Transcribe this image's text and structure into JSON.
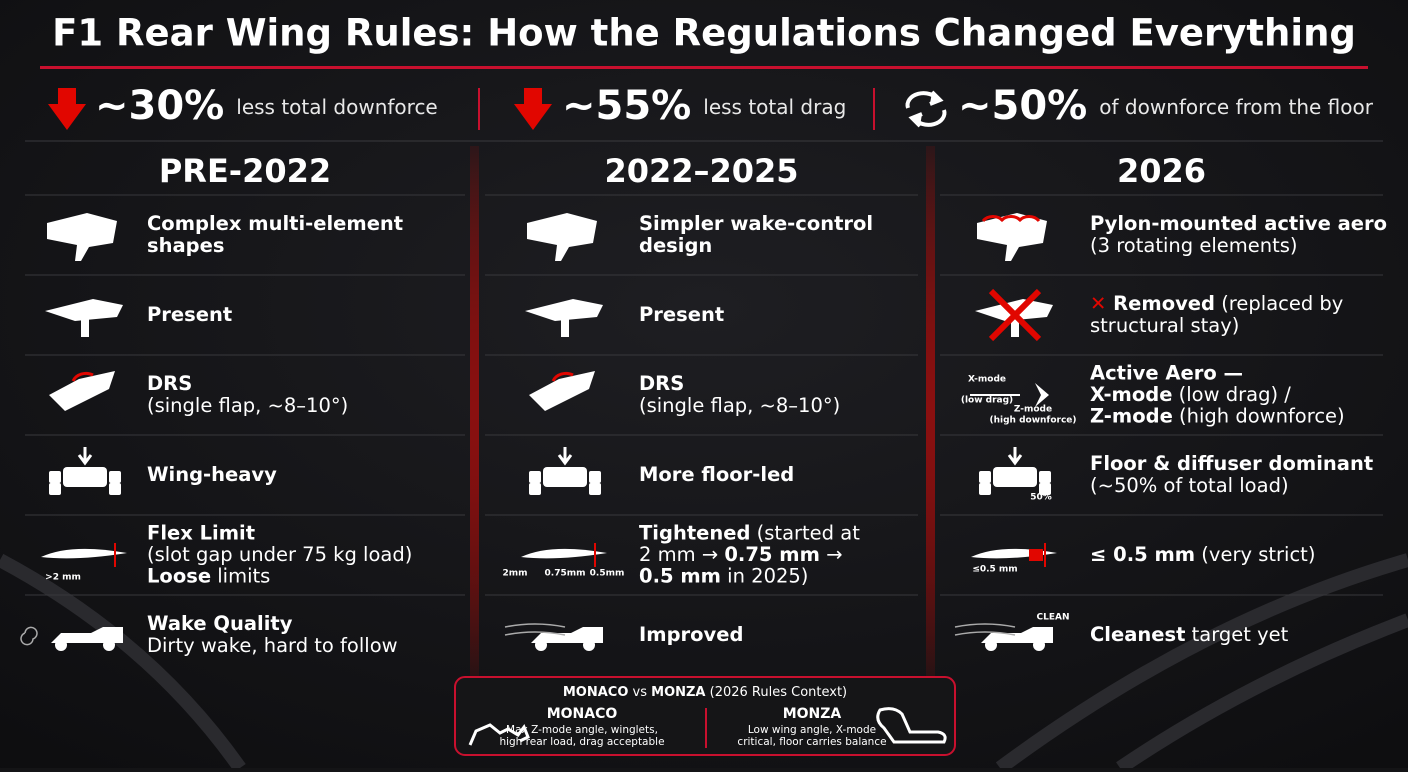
{
  "header": {
    "title": "F1 Rear Wing Rules: How the Regulations Changed Everything"
  },
  "stats": [
    {
      "value": "~30%",
      "text": "less total downforce"
    },
    {
      "value": "~55%",
      "text": "less total drag"
    },
    {
      "value": "~50%",
      "text": "of downforce from the floor"
    }
  ],
  "columns": [
    {
      "heading": "PRE-2022",
      "rows": [
        {
          "lines": [
            [
              {
                "t": "Complex multi-element",
                "b": true
              }
            ],
            [
              {
                "t": "shapes",
                "b": true
              }
            ]
          ]
        },
        {
          "lines": [
            [
              {
                "t": "Present",
                "b": true
              }
            ]
          ]
        },
        {
          "lines": [
            [
              {
                "t": "DRS",
                "b": true
              }
            ],
            [
              {
                "t": "(single flap, ~8–10°)"
              }
            ]
          ]
        },
        {
          "lines": [
            [
              {
                "t": "Wing-heavy",
                "b": true
              }
            ]
          ]
        },
        {
          "lines": [
            [
              {
                "t": "Flex Limit",
                "b": true
              }
            ],
            [
              {
                "t": "(slot gap under 75 kg load)"
              }
            ],
            [
              {
                "t": "Loose",
                "b": true
              },
              {
                "t": " limits"
              }
            ]
          ],
          "icon_labels": [
            ">2 mm"
          ]
        },
        {
          "lines": [
            [
              {
                "t": "Wake Quality",
                "b": true
              }
            ],
            [
              {
                "t": "Dirty wake, hard to follow"
              }
            ]
          ]
        }
      ]
    },
    {
      "heading": "2022–2025",
      "rows": [
        {
          "lines": [
            [
              {
                "t": "Simpler wake-control",
                "b": true
              }
            ],
            [
              {
                "t": "design",
                "b": true
              }
            ]
          ]
        },
        {
          "lines": [
            [
              {
                "t": "Present",
                "b": true
              }
            ]
          ]
        },
        {
          "lines": [
            [
              {
                "t": "DRS",
                "b": true
              }
            ],
            [
              {
                "t": "(single flap, ~8–10°)"
              }
            ]
          ]
        },
        {
          "lines": [
            [
              {
                "t": "More floor-led",
                "b": true
              }
            ]
          ]
        },
        {
          "lines": [
            [
              {
                "t": "Tightened",
                "b": true
              },
              {
                "t": " (started at"
              }
            ],
            [
              {
                "t": "2 mm → "
              },
              {
                "t": "0.75 mm",
                "b": true
              },
              {
                "t": " →"
              }
            ],
            [
              {
                "t": "0.5 mm",
                "b": true
              },
              {
                "t": " in 2025)"
              }
            ]
          ],
          "icon_labels": [
            "2mm",
            "0.75mm",
            "0.5mm"
          ]
        },
        {
          "lines": [
            [
              {
                "t": "Improved",
                "b": true
              }
            ]
          ]
        }
      ]
    },
    {
      "heading": "2026",
      "rows": [
        {
          "lines": [
            [
              {
                "t": "Pylon-mounted active aero",
                "b": true
              }
            ],
            [
              {
                "t": "(3 rotating elements)"
              }
            ]
          ]
        },
        {
          "lines": [
            [
              {
                "t": "✕ ",
                "b": true,
                "color": "#e10600"
              },
              {
                "t": "Removed",
                "b": true
              },
              {
                "t": " (replaced by"
              }
            ],
            [
              {
                "t": "structural stay)"
              }
            ]
          ]
        },
        {
          "lines": [
            [
              {
                "t": "Active Aero —",
                "b": true
              }
            ],
            [
              {
                "t": "X-mode",
                "b": true
              },
              {
                "t": " (low drag) /"
              }
            ],
            [
              {
                "t": "Z-mode",
                "b": true
              },
              {
                "t": " (high downforce)"
              }
            ]
          ],
          "icon_labels": [
            "X-mode",
            "(low drag)",
            "Z-mode",
            "(high downforce)"
          ]
        },
        {
          "lines": [
            [
              {
                "t": "Floor & diffuser dominant",
                "b": true
              }
            ],
            [
              {
                "t": "(~50% of total load)"
              }
            ]
          ],
          "icon_labels": [
            "50%"
          ]
        },
        {
          "lines": [
            [
              {
                "t": "≤ 0.5 mm",
                "b": true
              },
              {
                "t": " (very strict)"
              }
            ]
          ],
          "icon_labels": [
            "≤0.5 mm"
          ]
        },
        {
          "lines": [
            [
              {
                "t": "Cleanest",
                "b": true
              },
              {
                "t": " target yet"
              }
            ]
          ],
          "icon_labels": [
            "CLEAN"
          ]
        }
      ]
    }
  ],
  "comparison": {
    "title": [
      {
        "t": "MONACO",
        "b": true
      },
      {
        "t": " vs "
      },
      {
        "t": "MONZA",
        "b": true
      },
      {
        "t": " (2026 Rules Context)"
      }
    ],
    "tracks": [
      {
        "name": "MONACO",
        "lines": [
          "Max Z-mode angle, winglets,",
          "high rear load, drag acceptable"
        ]
      },
      {
        "name": "MONZA",
        "lines": [
          "Low wing angle, X-mode",
          "critical, floor carries balance"
        ]
      }
    ]
  }
}
